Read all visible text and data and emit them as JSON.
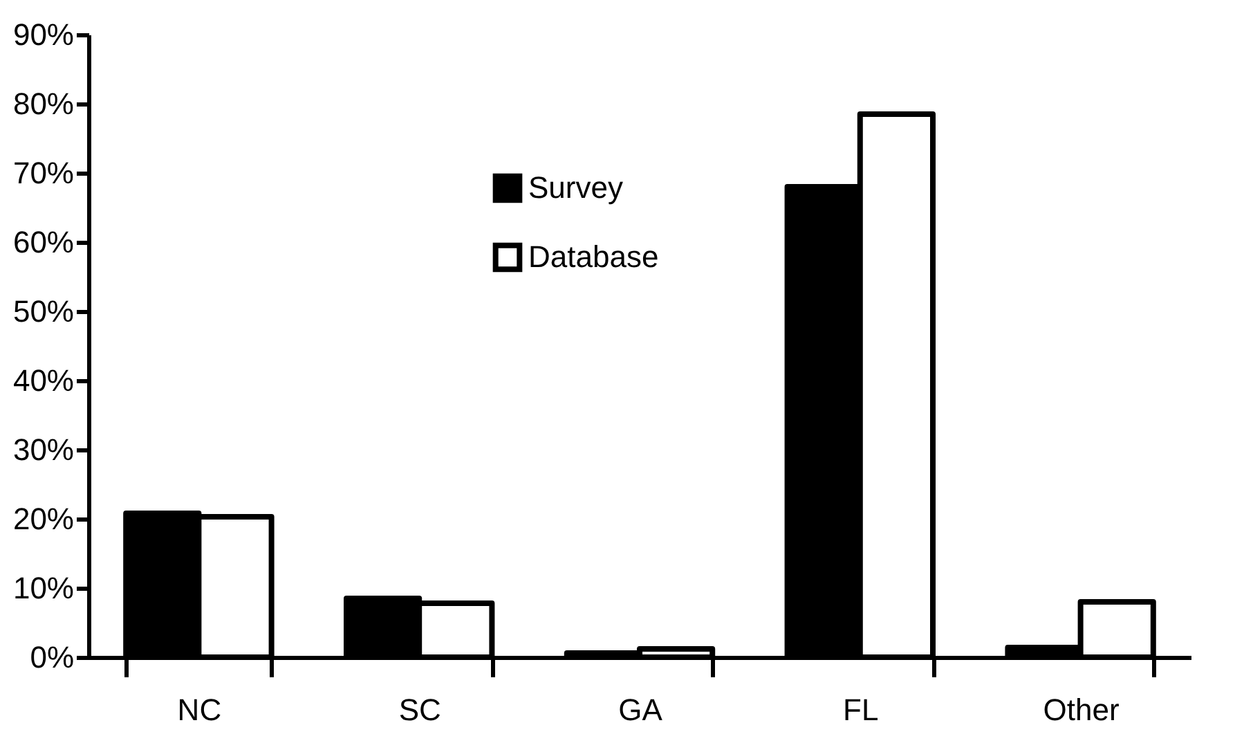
{
  "chart_data": {
    "type": "bar",
    "categories": [
      "NC",
      "SC",
      "GA",
      "FL",
      "Other"
    ],
    "series": [
      {
        "name": "Survey",
        "color": "#000000",
        "values": [
          20.8,
          8.5,
          0.6,
          68,
          1.4
        ]
      },
      {
        "name": "Database",
        "color": "#ffffff",
        "values": [
          20.3,
          7.8,
          1.2,
          78.5,
          8
        ]
      }
    ],
    "ylim": [
      0,
      90
    ],
    "yticks": [
      {
        "value": 0,
        "label": "0%"
      },
      {
        "value": 10,
        "label": "10%"
      },
      {
        "value": 20,
        "label": "20%"
      },
      {
        "value": 30,
        "label": "30%"
      },
      {
        "value": 40,
        "label": "40%"
      },
      {
        "value": 50,
        "label": "50%"
      },
      {
        "value": 60,
        "label": "60%"
      },
      {
        "value": 70,
        "label": "70%"
      },
      {
        "value": 80,
        "label": "80%"
      },
      {
        "value": 90,
        "label": "90%"
      }
    ],
    "grid": false,
    "legend": "top left"
  }
}
